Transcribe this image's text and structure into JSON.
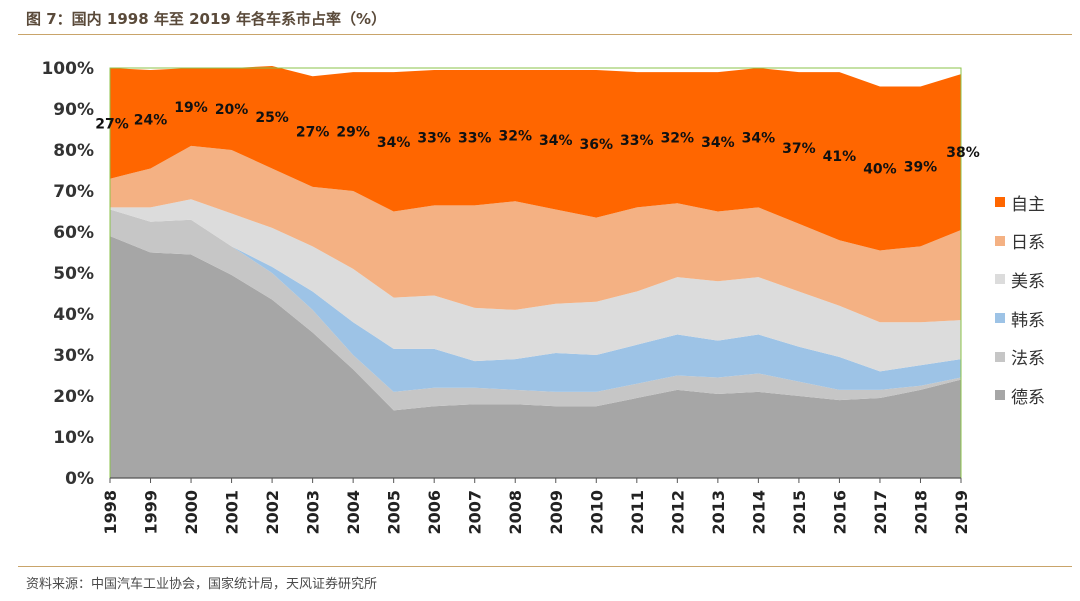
{
  "figure_title": "图 7：国内 1998 年至 2019 年各车系市占率（%）",
  "source_note": "资料来源：中国汽车工业协会，国家统计局，天风证券研究所",
  "chart_data": {
    "type": "area",
    "stacked": true,
    "title": "图 7：国内 1998 年至 2019 年各车系市占率（%）",
    "categories": [
      "1998",
      "1999",
      "2000",
      "2001",
      "2002",
      "2003",
      "2004",
      "2005",
      "2006",
      "2007",
      "2008",
      "2009",
      "2010",
      "2011",
      "2012",
      "2013",
      "2014",
      "2015",
      "2016",
      "2017",
      "2018",
      "2019"
    ],
    "ylim": [
      0,
      100
    ],
    "yticks": [
      "0%",
      "10%",
      "20%",
      "30%",
      "40%",
      "50%",
      "60%",
      "70%",
      "80%",
      "90%",
      "100%"
    ],
    "legend_position": "right",
    "series": [
      {
        "name": "德系",
        "color": "#a6a6a6",
        "values": [
          59,
          55,
          54.5,
          49.5,
          43.5,
          35.5,
          26.5,
          16.5,
          17.5,
          18,
          18,
          17.5,
          17.5,
          19.5,
          21.5,
          20.5,
          21,
          20,
          19,
          19.5,
          21.5,
          24
        ]
      },
      {
        "name": "法系",
        "color": "#c6c6c6",
        "values": [
          6.5,
          7.5,
          8.5,
          7,
          6.5,
          5.5,
          3.5,
          4.5,
          4.5,
          4,
          3.5,
          3.5,
          3.5,
          3.5,
          3.5,
          4,
          4.5,
          3.5,
          2.5,
          2,
          1,
          0.5
        ]
      },
      {
        "name": "韩系",
        "color": "#9dc3e6",
        "values": [
          0,
          0,
          0,
          0,
          1.5,
          4.5,
          8,
          10.5,
          9.5,
          6.5,
          7.5,
          9.5,
          9,
          9.5,
          10,
          9,
          9.5,
          8.5,
          8,
          4.5,
          5,
          4.5
        ]
      },
      {
        "name": "美系",
        "color": "#dcdcdc",
        "values": [
          0.5,
          3.5,
          5,
          8,
          9.5,
          11,
          13,
          12.5,
          13,
          13,
          12,
          12,
          13,
          13,
          14,
          14.5,
          14,
          13.5,
          12.5,
          12,
          10.5,
          9.5
        ]
      },
      {
        "name": "日系",
        "color": "#f4b183",
        "values": [
          7,
          9.5,
          13,
          15.5,
          14.5,
          14.5,
          19,
          21,
          22,
          25,
          26.5,
          23,
          20.5,
          20.5,
          18,
          17,
          17,
          16.5,
          16,
          17.5,
          18.5,
          22
        ]
      },
      {
        "name": "自主",
        "color": "#ff6600",
        "values": [
          27,
          24,
          19,
          20,
          25,
          27,
          29,
          34,
          33,
          33,
          32,
          34,
          36,
          33,
          32,
          34,
          34,
          37,
          41,
          40,
          39,
          38
        ]
      }
    ],
    "data_labels": [
      "27%",
      "24%",
      "19%",
      "20%",
      "25%",
      "27%",
      "29%",
      "34%",
      "33%",
      "33%",
      "32%",
      "34%",
      "36%",
      "33%",
      "32%",
      "34%",
      "34%",
      "37%",
      "41%",
      "40%",
      "39%",
      "38%"
    ],
    "legend_order": [
      "自主",
      "日系",
      "美系",
      "韩系",
      "法系",
      "德系"
    ]
  }
}
